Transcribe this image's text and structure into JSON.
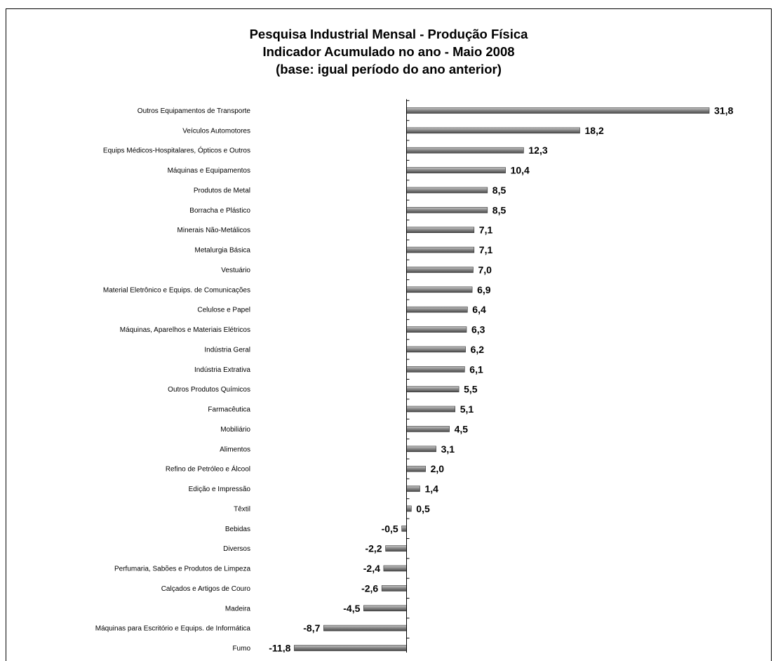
{
  "chart_data": {
    "type": "bar",
    "orientation": "horizontal",
    "title": "Pesquisa Industrial Mensal - Produção Física",
    "subtitle_lines": [
      "Indicador Acumulado no ano - Maio 2008",
      "(base: igual período do ano anterior)"
    ],
    "xlabel": "",
    "ylabel": "",
    "xlim": [
      -12,
      34
    ],
    "grid": false,
    "legend": "none",
    "bar_color": "#7f7f7f",
    "categories": [
      "Outros Equipamentos de Transporte",
      "Veículos Automotores",
      "Equips Médicos-Hospitalares, Ópticos e Outros",
      "Máquinas e Equipamentos",
      "Produtos de Metal",
      "Borracha e Plástico",
      "Minerais Não-Metálicos",
      "Metalurgia Básica",
      "Vestuário",
      "Material Eletrônico e Equips. de Comunicações",
      "Celulose e Papel",
      "Máquinas, Aparelhos e Materiais Elétricos",
      "Indústria Geral",
      "Indústria Extrativa",
      "Outros Produtos Químicos",
      "Farmacêutica",
      "Mobiliário",
      "Alimentos",
      "Refino de Petróleo e Álcool",
      "Edição e Impressão",
      "Têxtil",
      "Bebidas",
      "Diversos",
      "Perfumaria, Sabões e Produtos de Limpeza",
      "Calçados e Artigos de Couro",
      "Madeira",
      "Máquinas para Escritório e Equips. de Informática",
      "Fumo"
    ],
    "values": [
      31.8,
      18.2,
      12.3,
      10.4,
      8.5,
      8.5,
      7.1,
      7.1,
      7.0,
      6.9,
      6.4,
      6.3,
      6.2,
      6.1,
      5.5,
      5.1,
      4.5,
      3.1,
      2.0,
      1.4,
      0.5,
      -0.5,
      -2.2,
      -2.4,
      -2.6,
      -4.5,
      -8.7,
      -11.8
    ],
    "data_labels": [
      "31,8",
      "18,2",
      "12,3",
      "10,4",
      "8,5",
      "8,5",
      "7,1",
      "7,1",
      "7,0",
      "6,9",
      "6,4",
      "6,3",
      "6,2",
      "6,1",
      "5,5",
      "5,1",
      "4,5",
      "3,1",
      "2,0",
      "1,4",
      "0,5",
      "-0,5",
      "-2,2",
      "-2,4",
      "-2,6",
      "-4,5",
      "-8,7",
      "-11,8"
    ]
  }
}
